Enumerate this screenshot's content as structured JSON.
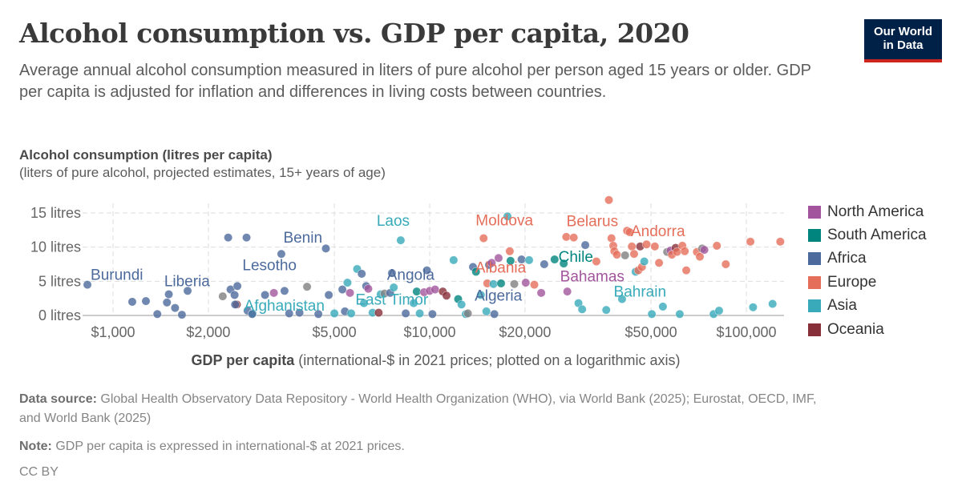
{
  "header": {
    "title": "Alcohol consumption vs. GDP per capita, 2020",
    "subtitle": "Average annual alcohol consumption measured in liters of pure alcohol per person aged 15 years or older. GDP per capita is adjusted for inflation and differences in living costs between countries.",
    "logo_line1": "Our World",
    "logo_line2": "in Data"
  },
  "footer": {
    "source_label": "Data source:",
    "source_text": "Global Health Observatory Data Repository - World Health Organization (WHO), via World Bank (2025); Eurostat, OECD, IMF, and World Bank (2025)",
    "note_label": "Note:",
    "note_text": "GDP per capita is expressed in international-$ at 2021 prices.",
    "license": "CC BY"
  },
  "chart_data": {
    "type": "scatter",
    "title": "Alcohol consumption vs. GDP per capita, 2020",
    "ylabel": "Alcohol consumption (litres per capita)",
    "ylabel_sub": "(liters of pure alcohol, projected estimates, 15+ years of age)",
    "xlabel": "GDP per capita",
    "xlabel_sub": "(international-$ in 2021 prices; plotted on a logarithmic axis)",
    "x_scale": "log",
    "xlim": [
      810,
      135000
    ],
    "ylim": [
      0,
      15
    ],
    "x_ticks": [
      {
        "value": 1000,
        "label": "$1,000"
      },
      {
        "value": 2000,
        "label": "$2,000"
      },
      {
        "value": 5000,
        "label": "$5,000"
      },
      {
        "value": 10000,
        "label": "$10,000"
      },
      {
        "value": 20000,
        "label": "$20,000"
      },
      {
        "value": 50000,
        "label": "$50,000"
      },
      {
        "value": 100000,
        "label": "$100,000"
      }
    ],
    "y_ticks": [
      {
        "value": 0,
        "label": "0 litres"
      },
      {
        "value": 5,
        "label": "5 litres"
      },
      {
        "value": 10,
        "label": "10 litres"
      },
      {
        "value": 15,
        "label": "15 litres"
      }
    ],
    "grid": true,
    "legend_position": "right",
    "legend": [
      {
        "name": "North America",
        "color": "#a2559c"
      },
      {
        "name": "South America",
        "color": "#00847e"
      },
      {
        "name": "Africa",
        "color": "#4c6a9c"
      },
      {
        "name": "Europe",
        "color": "#e56e5a"
      },
      {
        "name": "Asia",
        "color": "#38aaba"
      },
      {
        "name": "Oceania",
        "color": "#883039"
      }
    ],
    "other_color": "#7f7f7f",
    "labels": [
      {
        "name": "Burundi",
        "gdp": 830,
        "value": 4.5,
        "region": "Africa"
      },
      {
        "name": "Liberia",
        "gdp": 1520,
        "value": 3.7,
        "region": "Africa"
      },
      {
        "name": "Lesotho",
        "gdp": 2780,
        "value": 5.0,
        "region": "Africa"
      },
      {
        "name": "Benin",
        "gdp": 3700,
        "value": 9.7,
        "region": "Africa"
      },
      {
        "name": "Afghanistan",
        "gdp": 3200,
        "value": 1.2,
        "region": "Asia"
      },
      {
        "name": "Laos",
        "gdp": 8100,
        "value": 11.0,
        "region": "Asia"
      },
      {
        "name": "Angola",
        "gdp": 8000,
        "value": 5.0,
        "region": "Africa"
      },
      {
        "name": "East Timor",
        "gdp": 7800,
        "value": 1.1,
        "region": "Asia"
      },
      {
        "name": "Moldova",
        "gdp": 14800,
        "value": 11.3,
        "region": "Europe"
      },
      {
        "name": "Albania",
        "gdp": 15200,
        "value": 5.8,
        "region": "Europe"
      },
      {
        "name": "Algeria",
        "gdp": 14700,
        "value": 1.6,
        "region": "Africa"
      },
      {
        "name": "Belarus",
        "gdp": 29000,
        "value": 11.9,
        "region": "Europe"
      },
      {
        "name": "Chile",
        "gdp": 28000,
        "value": 7.6,
        "region": "South America"
      },
      {
        "name": "Bahamas",
        "gdp": 29000,
        "value": 4.5,
        "region": "North America"
      },
      {
        "name": "Andorra",
        "gdp": 62000,
        "value": 10.9,
        "region": "Europe"
      },
      {
        "name": "Bahrain",
        "gdp": 56000,
        "value": 2.3,
        "region": "Asia"
      }
    ],
    "points": [
      {
        "gdp": 830,
        "value": 4.5,
        "region": "Africa"
      },
      {
        "gdp": 1150,
        "value": 2.0,
        "region": "Africa"
      },
      {
        "gdp": 1270,
        "value": 2.1,
        "region": "Africa"
      },
      {
        "gdp": 1380,
        "value": 0.2,
        "region": "Africa"
      },
      {
        "gdp": 1480,
        "value": 1.9,
        "region": "Africa"
      },
      {
        "gdp": 1500,
        "value": 3.1,
        "region": "Africa"
      },
      {
        "gdp": 1570,
        "value": 1.1,
        "region": "Africa"
      },
      {
        "gdp": 1650,
        "value": 0.1,
        "region": "Africa"
      },
      {
        "gdp": 1720,
        "value": 3.6,
        "region": "Africa"
      },
      {
        "gdp": 2220,
        "value": 2.8,
        "region": "Other"
      },
      {
        "gdp": 2310,
        "value": 11.4,
        "region": "Africa"
      },
      {
        "gdp": 2350,
        "value": 3.8,
        "region": "Africa"
      },
      {
        "gdp": 2420,
        "value": 3.0,
        "region": "Africa"
      },
      {
        "gdp": 2470,
        "value": 4.3,
        "region": "Africa"
      },
      {
        "gdp": 2460,
        "value": 1.6,
        "region": "Oceania"
      },
      {
        "gdp": 2430,
        "value": 1.6,
        "region": "Africa"
      },
      {
        "gdp": 2640,
        "value": 11.4,
        "region": "Africa"
      },
      {
        "gdp": 2660,
        "value": 0.7,
        "region": "Africa"
      },
      {
        "gdp": 2760,
        "value": 0.3,
        "region": "Asia"
      },
      {
        "gdp": 2750,
        "value": 0.2,
        "region": "Africa"
      },
      {
        "gdp": 3020,
        "value": 3.0,
        "region": "Africa"
      },
      {
        "gdp": 3220,
        "value": 3.3,
        "region": "North America"
      },
      {
        "gdp": 3400,
        "value": 9.0,
        "region": "Africa"
      },
      {
        "gdp": 3480,
        "value": 3.6,
        "region": "Africa"
      },
      {
        "gdp": 3600,
        "value": 0.3,
        "region": "Africa"
      },
      {
        "gdp": 3880,
        "value": 0.4,
        "region": "Africa"
      },
      {
        "gdp": 4100,
        "value": 4.2,
        "region": "Other"
      },
      {
        "gdp": 4450,
        "value": 0.2,
        "region": "Africa"
      },
      {
        "gdp": 4700,
        "value": 9.8,
        "region": "Africa"
      },
      {
        "gdp": 4800,
        "value": 3.0,
        "region": "Africa"
      },
      {
        "gdp": 5000,
        "value": 0.3,
        "region": "Asia"
      },
      {
        "gdp": 5300,
        "value": 3.8,
        "region": "Africa"
      },
      {
        "gdp": 5500,
        "value": 4.8,
        "region": "Asia"
      },
      {
        "gdp": 5400,
        "value": 0.6,
        "region": "Africa"
      },
      {
        "gdp": 5600,
        "value": 3.3,
        "region": "North America"
      },
      {
        "gdp": 5650,
        "value": 0.3,
        "region": "Asia"
      },
      {
        "gdp": 5900,
        "value": 6.8,
        "region": "Asia"
      },
      {
        "gdp": 6100,
        "value": 6.1,
        "region": "Africa"
      },
      {
        "gdp": 6200,
        "value": 1.8,
        "region": "Asia"
      },
      {
        "gdp": 6300,
        "value": 4.3,
        "region": "Africa"
      },
      {
        "gdp": 6400,
        "value": 3.9,
        "region": "North America"
      },
      {
        "gdp": 6600,
        "value": 0.4,
        "region": "Asia"
      },
      {
        "gdp": 6900,
        "value": 0.4,
        "region": "Oceania"
      },
      {
        "gdp": 7000,
        "value": 3.1,
        "region": "Asia"
      },
      {
        "gdp": 7200,
        "value": 3.2,
        "region": "Other"
      },
      {
        "gdp": 7500,
        "value": 3.3,
        "region": "Africa"
      },
      {
        "gdp": 7600,
        "value": 6.2,
        "region": "Africa"
      },
      {
        "gdp": 7700,
        "value": 4.1,
        "region": "Asia"
      },
      {
        "gdp": 8100,
        "value": 11.0,
        "region": "Asia"
      },
      {
        "gdp": 8400,
        "value": 0.3,
        "region": "Africa"
      },
      {
        "gdp": 8900,
        "value": 1.8,
        "region": "Asia"
      },
      {
        "gdp": 9100,
        "value": 3.5,
        "region": "South America"
      },
      {
        "gdp": 9300,
        "value": 0.3,
        "region": "Asia"
      },
      {
        "gdp": 9600,
        "value": 3.4,
        "region": "North America"
      },
      {
        "gdp": 9800,
        "value": 6.6,
        "region": "Africa"
      },
      {
        "gdp": 10000,
        "value": 3.6,
        "region": "North America"
      },
      {
        "gdp": 10200,
        "value": 0.2,
        "region": "Africa"
      },
      {
        "gdp": 10400,
        "value": 3.8,
        "region": "North America"
      },
      {
        "gdp": 11000,
        "value": 3.5,
        "region": "Oceania"
      },
      {
        "gdp": 11300,
        "value": 2.9,
        "region": "Oceania"
      },
      {
        "gdp": 11900,
        "value": 8.1,
        "region": "Asia"
      },
      {
        "gdp": 12300,
        "value": 2.4,
        "region": "South America"
      },
      {
        "gdp": 12600,
        "value": 1.6,
        "region": "Asia"
      },
      {
        "gdp": 13000,
        "value": 0.2,
        "region": "Asia"
      },
      {
        "gdp": 13200,
        "value": 0.3,
        "region": "Other"
      },
      {
        "gdp": 13700,
        "value": 7.1,
        "region": "Africa"
      },
      {
        "gdp": 14000,
        "value": 6.4,
        "region": "South America"
      },
      {
        "gdp": 14500,
        "value": 3.0,
        "region": "Asia"
      },
      {
        "gdp": 14800,
        "value": 11.3,
        "region": "Europe"
      },
      {
        "gdp": 15100,
        "value": 0.6,
        "region": "Asia"
      },
      {
        "gdp": 15200,
        "value": 4.7,
        "region": "Europe"
      },
      {
        "gdp": 15400,
        "value": 7.4,
        "region": "Africa"
      },
      {
        "gdp": 15700,
        "value": 7.7,
        "region": "North America"
      },
      {
        "gdp": 15900,
        "value": 4.6,
        "region": "Asia"
      },
      {
        "gdp": 16000,
        "value": 0.2,
        "region": "Africa"
      },
      {
        "gdp": 16500,
        "value": 8.4,
        "region": "North America"
      },
      {
        "gdp": 16800,
        "value": 4.7,
        "region": "South America"
      },
      {
        "gdp": 17600,
        "value": 14.5,
        "region": "Asia"
      },
      {
        "gdp": 17900,
        "value": 9.4,
        "region": "Europe"
      },
      {
        "gdp": 18000,
        "value": 8.0,
        "region": "South America"
      },
      {
        "gdp": 18500,
        "value": 4.6,
        "region": "Other"
      },
      {
        "gdp": 19500,
        "value": 8.2,
        "region": "Africa"
      },
      {
        "gdp": 20100,
        "value": 4.8,
        "region": "North America"
      },
      {
        "gdp": 20600,
        "value": 8.1,
        "region": "Asia"
      },
      {
        "gdp": 21400,
        "value": 4.5,
        "region": "Europe"
      },
      {
        "gdp": 22500,
        "value": 3.3,
        "region": "North America"
      },
      {
        "gdp": 23000,
        "value": 7.5,
        "region": "Africa"
      },
      {
        "gdp": 24800,
        "value": 8.2,
        "region": "South America"
      },
      {
        "gdp": 26500,
        "value": 7.6,
        "region": "South America"
      },
      {
        "gdp": 27000,
        "value": 11.5,
        "region": "Europe"
      },
      {
        "gdp": 27200,
        "value": 3.5,
        "region": "North America"
      },
      {
        "gdp": 28500,
        "value": 11.4,
        "region": "Europe"
      },
      {
        "gdp": 29500,
        "value": 1.8,
        "region": "Asia"
      },
      {
        "gdp": 30300,
        "value": 0.9,
        "region": "Asia"
      },
      {
        "gdp": 31000,
        "value": 10.3,
        "region": "Africa"
      },
      {
        "gdp": 33600,
        "value": 7.9,
        "region": "Europe"
      },
      {
        "gdp": 36100,
        "value": 0.8,
        "region": "Asia"
      },
      {
        "gdp": 36800,
        "value": 16.9,
        "region": "Europe"
      },
      {
        "gdp": 37500,
        "value": 11.3,
        "region": "Europe"
      },
      {
        "gdp": 38000,
        "value": 10.2,
        "region": "Europe"
      },
      {
        "gdp": 38300,
        "value": 9.4,
        "region": "Europe"
      },
      {
        "gdp": 39000,
        "value": 8.9,
        "region": "Europe"
      },
      {
        "gdp": 40500,
        "value": 2.4,
        "region": "Asia"
      },
      {
        "gdp": 41400,
        "value": 8.8,
        "region": "Other"
      },
      {
        "gdp": 42000,
        "value": 12.4,
        "region": "Europe"
      },
      {
        "gdp": 42800,
        "value": 12.2,
        "region": "Europe"
      },
      {
        "gdp": 43500,
        "value": 10.1,
        "region": "Europe"
      },
      {
        "gdp": 44200,
        "value": 9.0,
        "region": "Europe"
      },
      {
        "gdp": 44700,
        "value": 6.4,
        "region": "Asia"
      },
      {
        "gdp": 45600,
        "value": 6.6,
        "region": "Europe"
      },
      {
        "gdp": 46200,
        "value": 10.1,
        "region": "Oceania"
      },
      {
        "gdp": 46800,
        "value": 7.1,
        "region": "Europe"
      },
      {
        "gdp": 47600,
        "value": 7.9,
        "region": "Asia"
      },
      {
        "gdp": 48400,
        "value": 10.4,
        "region": "Europe"
      },
      {
        "gdp": 50300,
        "value": 0.2,
        "region": "Asia"
      },
      {
        "gdp": 51400,
        "value": 10.1,
        "region": "Europe"
      },
      {
        "gdp": 53000,
        "value": 7.7,
        "region": "Europe"
      },
      {
        "gdp": 54500,
        "value": 1.3,
        "region": "Asia"
      },
      {
        "gdp": 56200,
        "value": 9.3,
        "region": "Other"
      },
      {
        "gdp": 57600,
        "value": 9.5,
        "region": "North America"
      },
      {
        "gdp": 58200,
        "value": 8.9,
        "region": "Europe"
      },
      {
        "gdp": 59800,
        "value": 9.9,
        "region": "Oceania"
      },
      {
        "gdp": 60400,
        "value": 9.3,
        "region": "Europe"
      },
      {
        "gdp": 61600,
        "value": 0.2,
        "region": "Asia"
      },
      {
        "gdp": 62800,
        "value": 10.2,
        "region": "Europe"
      },
      {
        "gdp": 63900,
        "value": 9.4,
        "region": "Europe"
      },
      {
        "gdp": 64600,
        "value": 6.6,
        "region": "Europe"
      },
      {
        "gdp": 69800,
        "value": 9.3,
        "region": "Europe"
      },
      {
        "gdp": 71300,
        "value": 8.6,
        "region": "Europe"
      },
      {
        "gdp": 72500,
        "value": 9.8,
        "region": "Other"
      },
      {
        "gdp": 73700,
        "value": 9.6,
        "region": "North America"
      },
      {
        "gdp": 78800,
        "value": 0.2,
        "region": "Asia"
      },
      {
        "gdp": 80700,
        "value": 10.2,
        "region": "Europe"
      },
      {
        "gdp": 82000,
        "value": 0.7,
        "region": "Asia"
      },
      {
        "gdp": 86100,
        "value": 7.5,
        "region": "Europe"
      },
      {
        "gdp": 103000,
        "value": 10.8,
        "region": "Europe"
      },
      {
        "gdp": 105000,
        "value": 1.2,
        "region": "Asia"
      },
      {
        "gdp": 121000,
        "value": 1.7,
        "region": "Asia"
      },
      {
        "gdp": 128000,
        "value": 10.8,
        "region": "Europe"
      }
    ]
  }
}
